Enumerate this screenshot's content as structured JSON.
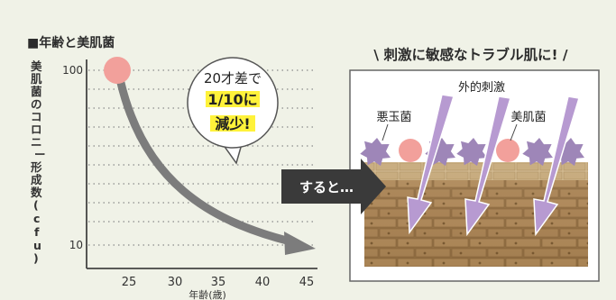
{
  "chart": {
    "title": "■年齢と美肌菌",
    "ylabel_chars": [
      "美",
      "肌",
      "菌",
      "の",
      "コ",
      "ロ",
      "ニ",
      "ー",
      "形",
      "成",
      "数",
      "(",
      "c",
      "f",
      "u",
      ")"
    ],
    "xlabel": "年齢(歳)",
    "x_ticks": [
      "25",
      "30",
      "35",
      "40",
      "45"
    ],
    "y_ticks": [
      "100",
      "10"
    ],
    "callout_line1": "20才差で",
    "callout_line2": "1/10に",
    "callout_line3": "減少!"
  },
  "chart_data": {
    "type": "line",
    "title": "年齢と美肌菌",
    "xlabel": "年齢(歳)",
    "ylabel": "美肌菌のコロニー形成数(cfu)",
    "x": [
      24,
      45
    ],
    "y": [
      100,
      10
    ],
    "xlim": [
      20,
      46
    ],
    "ylim": [
      10,
      100
    ],
    "yscale": "log",
    "grid": true
  },
  "arrow_banner": {
    "label": "すると…"
  },
  "skin_panel": {
    "heading": "\\ 刺激に敏感なトラブル肌に! /",
    "label_external": "外的刺激",
    "label_bad": "悪玉菌",
    "label_good": "美肌菌"
  },
  "colors": {
    "background": "#f0f2e7",
    "bad_bacteria": "#9e86b8",
    "good_bacteria": "#f2a09b",
    "stimulus_arrow": "#b79ad1",
    "highlight": "#fff23a",
    "curve": "#7c7c7c"
  }
}
